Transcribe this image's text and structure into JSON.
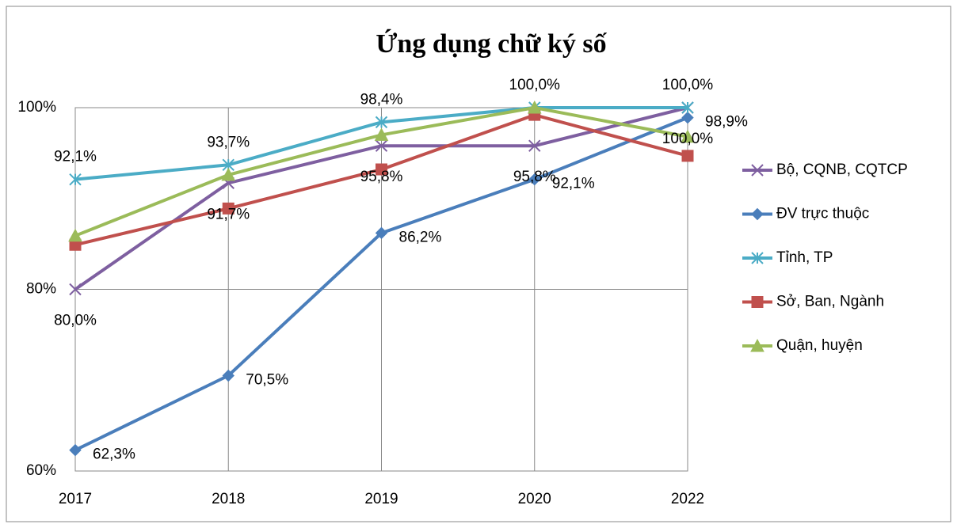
{
  "chart_data": {
    "type": "line",
    "title": "Ứng dụng chữ ký số",
    "categories": [
      "2017",
      "2018",
      "2019",
      "2020",
      "2022"
    ],
    "ylim": [
      60,
      100
    ],
    "yticks": [
      {
        "value": 60,
        "label": "60%"
      },
      {
        "value": 80,
        "label": "80%"
      },
      {
        "value": 100,
        "label": "100%"
      }
    ],
    "grid": true,
    "legend": "right",
    "series": [
      {
        "name": "Bộ, CQNB, CQTCP",
        "color": "#7e5fa0",
        "marker": "x",
        "values": [
          80.0,
          91.7,
          95.8,
          95.8,
          100.0
        ],
        "value_labels": [
          "80,0%",
          "91,7%",
          "95,8%",
          "95,8%",
          "100,0%"
        ]
      },
      {
        "name": "ĐV trực thuộc",
        "color": "#4a7ebb",
        "marker": "diamond",
        "values": [
          62.3,
          70.5,
          86.2,
          92.1,
          98.9
        ],
        "value_labels": [
          "62,3%",
          "70,5%",
          "86,2%",
          "92,1%",
          "98,9%"
        ]
      },
      {
        "name": "Tỉnh, TP",
        "color": "#4bacc6",
        "marker": "star",
        "values": [
          92.1,
          93.7,
          98.4,
          100.0,
          100.0
        ],
        "value_labels": [
          "92,1%",
          "93,7%",
          "98,4%",
          "100,0%",
          "100,0%"
        ]
      },
      {
        "name": "Sở, Ban, Ngành",
        "color": "#c0504d",
        "marker": "square",
        "values": [
          84.9,
          88.9,
          93.2,
          99.2,
          94.7
        ]
      },
      {
        "name": "Quận, huyện",
        "color": "#9bbb59",
        "marker": "triangle",
        "values": [
          85.9,
          92.6,
          97.0,
          100.0,
          96.8
        ]
      }
    ]
  }
}
